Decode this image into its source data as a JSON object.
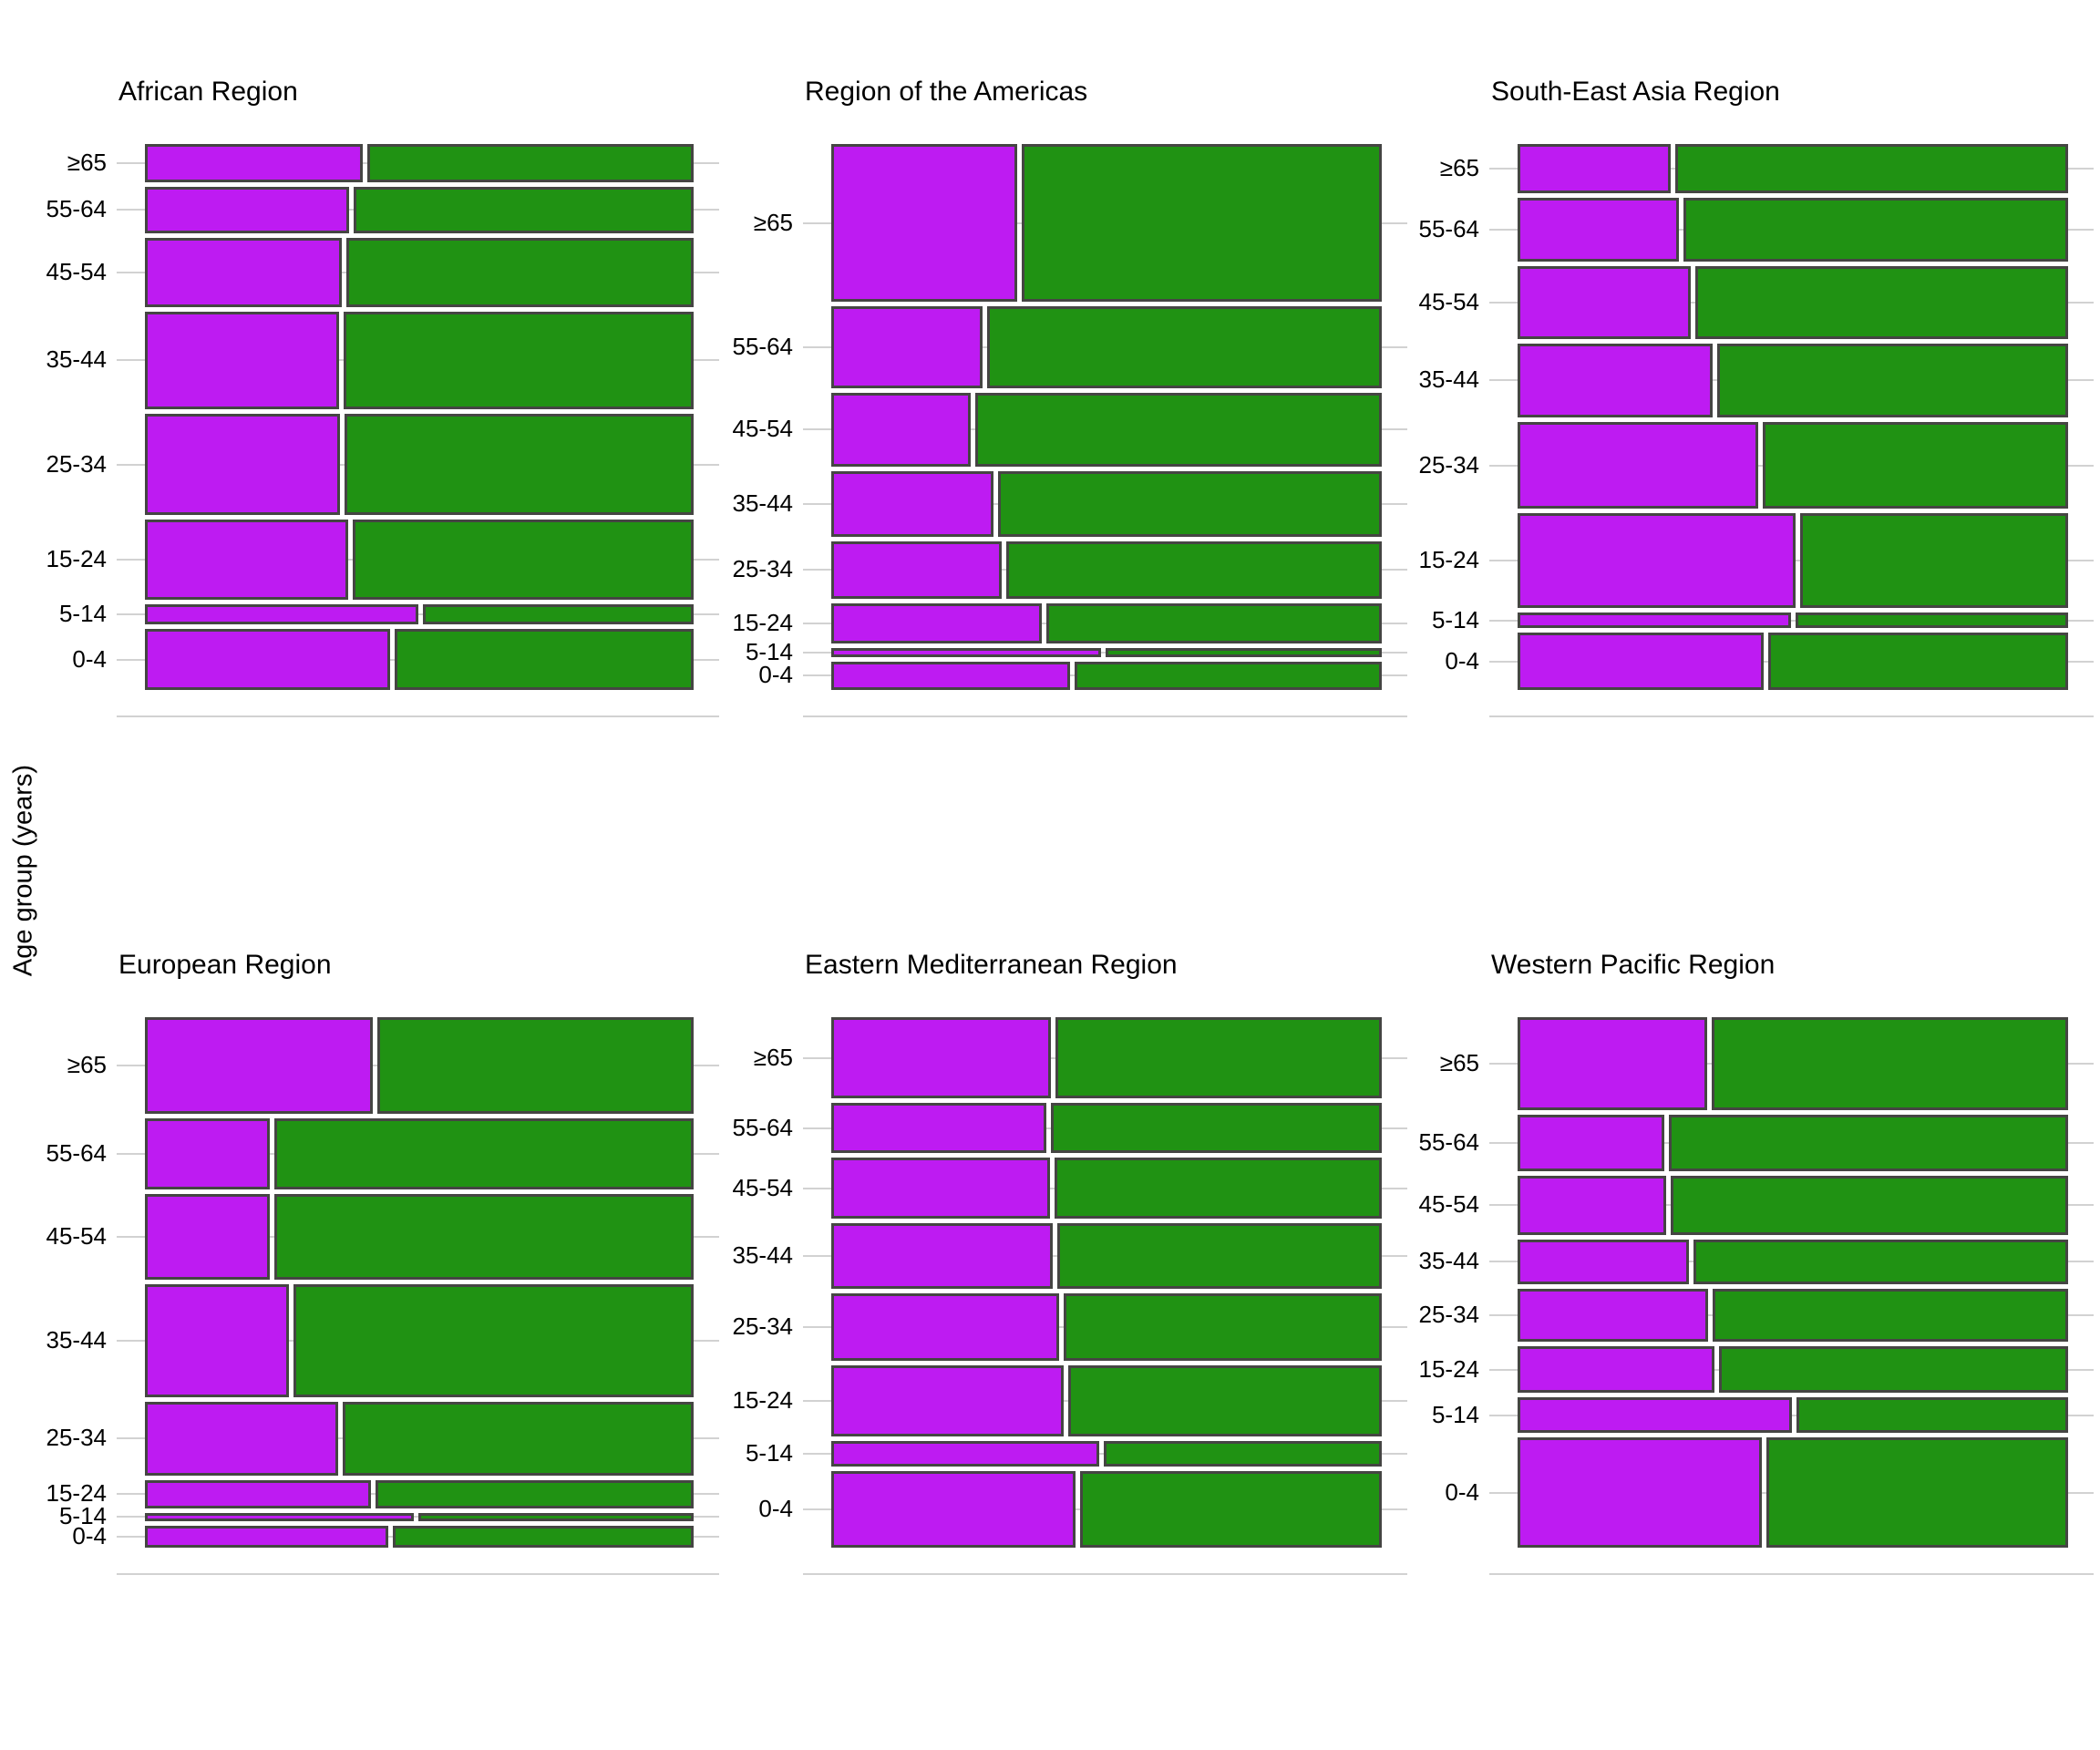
{
  "figure": {
    "y_axis_label": "Age group (years)"
  },
  "chart_data": {
    "type": "mosaic",
    "title": "",
    "xlabel": "",
    "ylabel": "Age group (years)",
    "grid": "light horizontal gridlines at each age-group row center",
    "legend": "none visible",
    "age_groups": [
      "≥65",
      "55-64",
      "45-54",
      "35-44",
      "25-34",
      "15-24",
      "5-14",
      "0-4"
    ],
    "colors": {
      "left_segment": "#be1bf2",
      "right_segment": "#209213",
      "segment_border": "#454543",
      "gridline": "#d2d2d2",
      "text": "#000000"
    },
    "panels": [
      {
        "title": "African Region",
        "row_height_pct": [
          7.4,
          9.1,
          13.4,
          19.1,
          19.7,
          15.6,
          3.9,
          11.8
        ],
        "left_width_pct": [
          40.0,
          37.6,
          36.1,
          35.6,
          35.9,
          37.3,
          50.2,
          45.0
        ]
      },
      {
        "title": "Region of the Americas",
        "row_height_pct": [
          30.7,
          15.8,
          14.4,
          12.7,
          11.3,
          7.7,
          1.8,
          5.5
        ],
        "left_width_pct": [
          34.1,
          27.7,
          25.5,
          29.7,
          31.2,
          38.6,
          49.4,
          43.7
        ]
      },
      {
        "title": "South-East Asia Region",
        "row_height_pct": [
          9.6,
          12.4,
          14.1,
          14.5,
          16.8,
          18.5,
          3.0,
          11.1
        ],
        "left_width_pct": [
          28.0,
          29.5,
          31.7,
          35.7,
          44.1,
          50.9,
          50.0,
          45.0
        ]
      },
      {
        "title": "European Region",
        "row_height_pct": [
          19.4,
          14.2,
          17.3,
          22.6,
          14.8,
          5.7,
          1.7,
          4.4
        ],
        "left_width_pct": [
          41.8,
          22.9,
          22.9,
          26.5,
          35.5,
          41.6,
          49.4,
          44.8
        ]
      },
      {
        "title": "Eastern Mediterranean Region",
        "row_height_pct": [
          16.3,
          10.1,
          12.2,
          13.2,
          13.5,
          14.2,
          5.2,
          15.3
        ],
        "left_width_pct": [
          40.3,
          39.4,
          40.0,
          40.5,
          41.7,
          42.5,
          49.0,
          44.7
        ]
      },
      {
        "title": "Western Pacific Region",
        "row_height_pct": [
          18.7,
          11.2,
          11.9,
          9.0,
          10.6,
          9.4,
          7.1,
          22.1
        ],
        "left_width_pct": [
          34.7,
          26.9,
          27.2,
          31.4,
          34.9,
          36.1,
          50.2,
          44.8
        ]
      }
    ]
  }
}
